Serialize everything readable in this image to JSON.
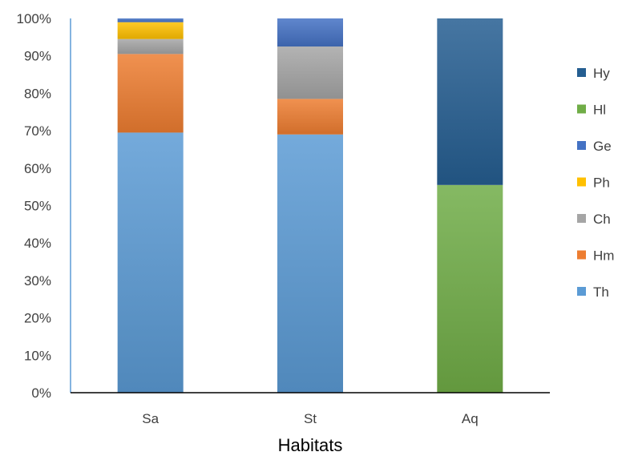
{
  "chart_data": {
    "type": "bar",
    "stacked": true,
    "percent": true,
    "title": "",
    "xlabel": "Habitats",
    "ylabel": "",
    "ylim": [
      0,
      100
    ],
    "yticks": [
      "0%",
      "10%",
      "20%",
      "30%",
      "40%",
      "50%",
      "60%",
      "70%",
      "80%",
      "90%",
      "100%"
    ],
    "categories": [
      "Sa",
      "St",
      "Aq"
    ],
    "series": [
      {
        "name": "Th",
        "color": "#5b9bd5",
        "values": [
          69.5,
          69.0,
          0
        ]
      },
      {
        "name": "Hm",
        "color": "#ed7d31",
        "values": [
          21.0,
          9.5,
          0
        ]
      },
      {
        "name": "Ch",
        "color": "#a5a5a5",
        "values": [
          4.0,
          14.0,
          0
        ]
      },
      {
        "name": "Ph",
        "color": "#ffc000",
        "values": [
          4.5,
          0,
          0
        ]
      },
      {
        "name": "Ge",
        "color": "#4472c4",
        "values": [
          1.0,
          7.5,
          0
        ]
      },
      {
        "name": "Hl",
        "color": "#70ad47",
        "values": [
          0,
          0,
          55.5
        ]
      },
      {
        "name": "Hy",
        "color": "#255e91",
        "values": [
          0,
          0,
          44.5
        ]
      }
    ],
    "legend": {
      "position": "right",
      "order": [
        "Hy",
        "Hl",
        "Ge",
        "Ph",
        "Ch",
        "Hm",
        "Th"
      ]
    },
    "grid": false
  }
}
